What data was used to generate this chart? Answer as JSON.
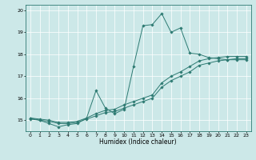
{
  "xlabel": "Humidex (Indice chaleur)",
  "bg_color": "#cce8e8",
  "grid_color": "#ffffff",
  "line_color": "#2d7a72",
  "marker_color": "#2d7a72",
  "xlim": [
    -0.5,
    23.5
  ],
  "ylim": [
    14.5,
    20.25
  ],
  "yticks": [
    15,
    16,
    17,
    18,
    19,
    20
  ],
  "xticks": [
    0,
    1,
    2,
    3,
    4,
    5,
    6,
    7,
    8,
    9,
    10,
    11,
    12,
    13,
    14,
    15,
    16,
    17,
    18,
    19,
    20,
    21,
    22,
    23
  ],
  "series": [
    {
      "x": [
        0,
        1,
        2,
        3,
        4,
        5,
        6,
        7,
        8,
        9,
        10,
        11,
        12,
        13,
        14,
        15,
        16,
        17,
        18,
        19,
        20,
        21,
        22,
        23
      ],
      "y": [
        15.05,
        15.0,
        14.95,
        14.85,
        14.85,
        14.9,
        15.05,
        15.2,
        15.35,
        15.4,
        15.55,
        15.7,
        15.85,
        16.0,
        16.5,
        16.8,
        17.0,
        17.2,
        17.5,
        17.6,
        17.7,
        17.75,
        17.8,
        17.8
      ]
    },
    {
      "x": [
        0,
        1,
        2,
        3,
        4,
        5,
        6,
        7,
        8,
        9,
        10,
        11,
        12,
        13,
        14,
        15,
        16,
        17,
        18,
        19,
        20,
        21,
        22,
        23
      ],
      "y": [
        15.1,
        15.05,
        15.0,
        14.9,
        14.9,
        14.95,
        15.1,
        15.3,
        15.45,
        15.5,
        15.7,
        15.85,
        16.0,
        16.15,
        16.7,
        17.0,
        17.2,
        17.45,
        17.7,
        17.8,
        17.85,
        17.9,
        17.9,
        17.9
      ]
    },
    {
      "x": [
        0,
        1,
        2,
        3,
        4,
        5,
        6,
        7,
        8,
        9,
        10,
        11,
        12,
        13,
        14,
        15,
        16,
        17,
        18,
        19,
        20,
        21,
        22,
        23
      ],
      "y": [
        15.1,
        15.0,
        14.85,
        14.7,
        14.8,
        14.85,
        15.1,
        16.35,
        15.55,
        15.3,
        15.5,
        17.45,
        19.3,
        19.35,
        19.85,
        19.0,
        19.2,
        18.05,
        18.0,
        17.85,
        17.8,
        17.75,
        17.75,
        17.75
      ]
    }
  ]
}
